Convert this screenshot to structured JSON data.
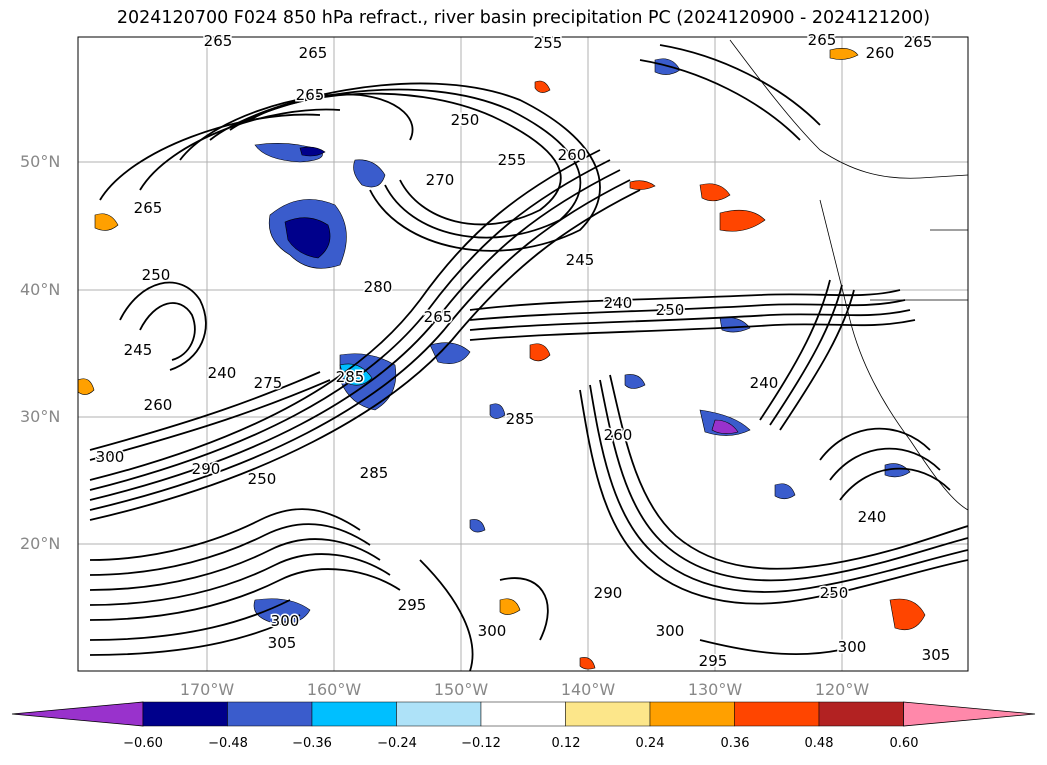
{
  "title": "2024120700 F024 850 hPa refract., river basin precipitation PC (2024120900 - 2024121200)",
  "map": {
    "lat_labels": [
      "50°N",
      "40°N",
      "30°N",
      "20°N"
    ],
    "lon_labels": [
      "170°W",
      "160°W",
      "150°W",
      "140°W",
      "130°W",
      "120°W"
    ],
    "grid": true,
    "contour_labels": [
      {
        "text": "265"
      },
      {
        "text": "265"
      },
      {
        "text": "255"
      },
      {
        "text": "265"
      },
      {
        "text": "260"
      },
      {
        "text": "265"
      },
      {
        "text": "265"
      },
      {
        "text": "250"
      },
      {
        "text": "255"
      },
      {
        "text": "260"
      },
      {
        "text": "270"
      },
      {
        "text": "265"
      },
      {
        "text": "250"
      },
      {
        "text": "245"
      },
      {
        "text": "240"
      },
      {
        "text": "250"
      },
      {
        "text": "245"
      },
      {
        "text": "240"
      },
      {
        "text": "280"
      },
      {
        "text": "265"
      },
      {
        "text": "285"
      },
      {
        "text": "275"
      },
      {
        "text": "260"
      },
      {
        "text": "300"
      },
      {
        "text": "290"
      },
      {
        "text": "250"
      },
      {
        "text": "285"
      },
      {
        "text": "295"
      },
      {
        "text": "300"
      },
      {
        "text": "305"
      },
      {
        "text": "300"
      },
      {
        "text": "290"
      },
      {
        "text": "300"
      },
      {
        "text": "250"
      },
      {
        "text": "240"
      },
      {
        "text": "300"
      },
      {
        "text": "305"
      },
      {
        "text": "240"
      },
      {
        "text": "260"
      },
      {
        "text": "285"
      },
      {
        "text": "295"
      }
    ]
  },
  "colorbar": {
    "ticks": [
      "−0.60",
      "−0.48",
      "−0.36",
      "−0.24",
      "−0.12",
      "0.12",
      "0.24",
      "0.36",
      "0.48",
      "0.60"
    ],
    "colors": [
      "#9932cc",
      "#00008b",
      "#3a5ccc",
      "#00bfff",
      "#aee2f8",
      "#ffffff",
      "#fce68a",
      "#ffa000",
      "#ff4500",
      "#b22222",
      "#ff88aa"
    ]
  }
}
